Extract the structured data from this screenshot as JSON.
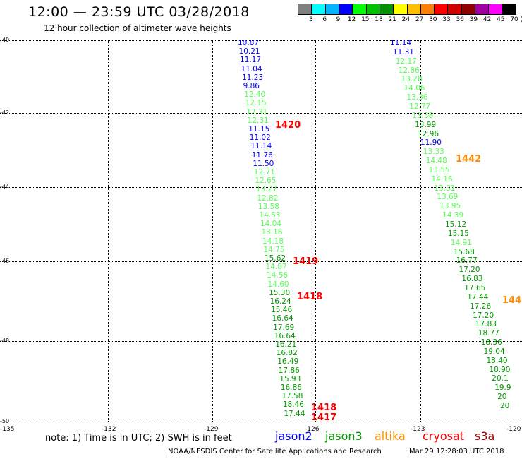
{
  "header": {
    "title": "12:00 — 23:59 UTC 03/28/2018",
    "subtitle": "12 hour collection of altimeter wave heights"
  },
  "scale": {
    "colors": [
      "#808080",
      "#00ffff",
      "#00b4ff",
      "#0000ff",
      "#00ff00",
      "#00c000",
      "#009000",
      "#ffff00",
      "#ffc000",
      "#ff8000",
      "#ff0000",
      "#d00000",
      "#900000",
      "#a000a0",
      "#ff00ff",
      "#000000"
    ],
    "labels": [
      "3",
      "6",
      "9",
      "12",
      "15",
      "18",
      "21",
      "24",
      "27",
      "30",
      "33",
      "36",
      "39",
      "42",
      "45",
      "70",
      "(ft)"
    ]
  },
  "axes": {
    "lat_labels": [
      "-40",
      "-42",
      "-44",
      "-46",
      "-48",
      "-50"
    ],
    "lon_labels": [
      "-135",
      "-132",
      "-129",
      "-126",
      "-123",
      "-120"
    ]
  },
  "track1": {
    "values": [
      "10.87",
      "10.21",
      "11.17",
      "11.04",
      "11.23",
      "9.86",
      "12.40",
      "12.15",
      "12.31",
      "12.31",
      "11.15",
      "11.02",
      "11.14",
      "11.76",
      "11.50",
      "12.71",
      "12.65",
      "13.27",
      "12.82",
      "13.58",
      "14.53",
      "14.04",
      "13.16",
      "14.18",
      "14.75",
      "15.62",
      "14.87",
      "14.56",
      "14.60",
      "15.30",
      "16.24",
      "15.46",
      "16.64",
      "17.69",
      "16.64",
      "16.21",
      "16.82",
      "16.49",
      "17.86",
      "15.93",
      "16.86",
      "17.58",
      "18.46",
      "17.44"
    ],
    "colors": [
      "#0000ff",
      "#0000ff",
      "#0000ff",
      "#0000ff",
      "#0000ff",
      "#0000ff",
      "#55ff55",
      "#55ff55",
      "#55ff55",
      "#55ff55",
      "#0000ff",
      "#0000ff",
      "#0000ff",
      "#0000ff",
      "#0000ff",
      "#55ff55",
      "#55ff55",
      "#55ff55",
      "#55ff55",
      "#55ff55",
      "#55ff55",
      "#55ff55",
      "#55ff55",
      "#55ff55",
      "#55ff55",
      "#009900",
      "#55ff55",
      "#55ff55",
      "#55ff55",
      "#009900",
      "#009900",
      "#009900",
      "#009900",
      "#009900",
      "#009900",
      "#009900",
      "#009900",
      "#009900",
      "#009900",
      "#009900",
      "#009900",
      "#009900",
      "#009900",
      "#009900"
    ]
  },
  "track2": {
    "values": [
      "11.14",
      "11.31",
      "12.17",
      "12.86",
      "13.28",
      "14.06",
      "13.36",
      "12.77",
      "13.38",
      "13.99",
      "12.96",
      "11.90",
      "13.33",
      "14.48",
      "13.55",
      "14.16",
      "13.31",
      "13.69",
      "13.95",
      "14.39",
      "15.12",
      "15.15",
      "14.91",
      "15.68",
      "16.77",
      "17.20",
      "16.83",
      "17.65",
      "17.44",
      "17.26",
      "17.20",
      "17.83",
      "18.77",
      "18.36",
      "19.04",
      "18.40",
      "18.90",
      "20.1",
      "19.9",
      "20",
      "20"
    ],
    "colors": [
      "#0000ff",
      "#0000ff",
      "#55ff55",
      "#55ff55",
      "#55ff55",
      "#55ff55",
      "#55ff55",
      "#55ff55",
      "#55ff55",
      "#009900",
      "#009900",
      "#0000ff",
      "#55ff55",
      "#55ff55",
      "#55ff55",
      "#55ff55",
      "#55ff55",
      "#55ff55",
      "#55ff55",
      "#55ff55",
      "#009900",
      "#009900",
      "#55ff55",
      "#009900",
      "#009900",
      "#009900",
      "#009900",
      "#009900",
      "#009900",
      "#009900",
      "#009900",
      "#009900",
      "#009900",
      "#009900",
      "#009900",
      "#009900",
      "#009900",
      "#009900",
      "#009900",
      "#009900",
      "#009900"
    ]
  },
  "time_labels": [
    {
      "text": "1420",
      "color": "#ff0000"
    },
    {
      "text": "1419",
      "color": "#ff0000"
    },
    {
      "text": "1418",
      "color": "#ff0000"
    },
    {
      "text": "1418",
      "color": "#ff0000"
    },
    {
      "text": "1417",
      "color": "#ff0000"
    },
    {
      "text": "1442",
      "color": "#ff8c00"
    },
    {
      "text": "144",
      "color": "#ff8c00"
    }
  ],
  "footer": {
    "note": "note: 1) Time is in UTC; 2) SWH is in feet",
    "satellites": [
      {
        "name": "jason2",
        "color": "#0000ff"
      },
      {
        "name": "jason3",
        "color": "#009900"
      },
      {
        "name": "altika",
        "color": "#ff8c00"
      },
      {
        "name": "cryosat",
        "color": "#ff0000"
      },
      {
        "name": "s3a",
        "color": "#990000"
      }
    ],
    "credit": "NOAA/NESDIS Center for Satellite Applications and Research",
    "timestamp": "Mar 29 12:28:03 UTC 2018"
  }
}
